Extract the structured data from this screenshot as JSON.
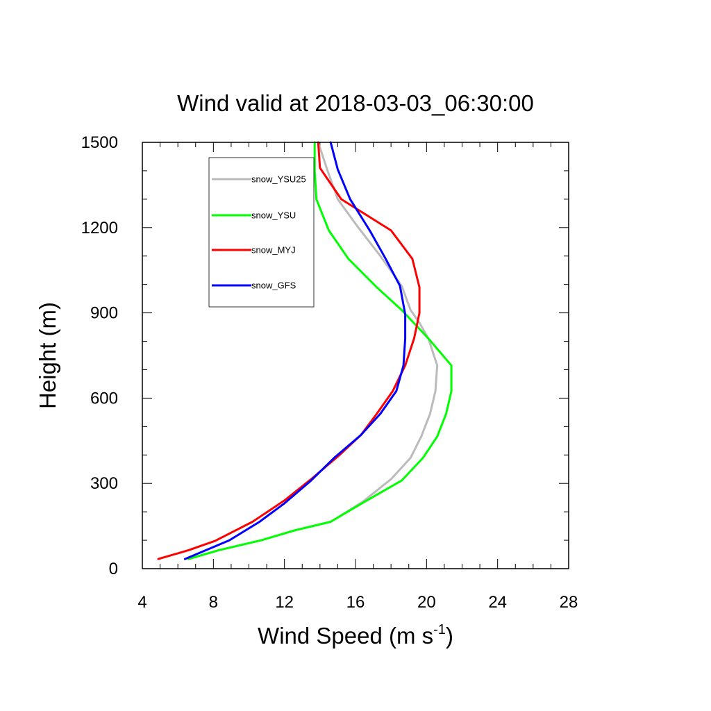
{
  "chart_data": {
    "type": "line",
    "title": "Wind valid at 2018-03-03_06:30:00",
    "xlabel": "Wind Speed (m s",
    "xlabel_superscript": "-1",
    "xlabel_suffix": ")",
    "ylabel": "Height (m)",
    "xlim": [
      4,
      28
    ],
    "ylim": [
      0,
      1500
    ],
    "x_ticks": [
      4,
      8,
      12,
      16,
      20,
      24,
      28
    ],
    "y_ticks": [
      0,
      300,
      600,
      900,
      1200,
      1500
    ],
    "grid": false,
    "legend_position": "top-left",
    "series": [
      {
        "name": "snow_YSU25",
        "color": "#bbbbbb",
        "points": [
          [
            6.6,
            34
          ],
          [
            8.3,
            65
          ],
          [
            10.7,
            100
          ],
          [
            12.6,
            135
          ],
          [
            14.6,
            165
          ],
          [
            16.4,
            235
          ],
          [
            18.0,
            315
          ],
          [
            19.1,
            390
          ],
          [
            19.7,
            465
          ],
          [
            20.2,
            545
          ],
          [
            20.5,
            625
          ],
          [
            20.6,
            715
          ],
          [
            20.1,
            810
          ],
          [
            19.6,
            865
          ],
          [
            19.1,
            910
          ],
          [
            18.6,
            995
          ],
          [
            17.4,
            1100
          ],
          [
            16.1,
            1205
          ],
          [
            15.0,
            1300
          ],
          [
            14.4,
            1405
          ],
          [
            13.9,
            1500
          ]
        ]
      },
      {
        "name": "snow_YSU",
        "color": "#00ff00",
        "points": [
          [
            6.6,
            34
          ],
          [
            8.3,
            65
          ],
          [
            10.7,
            100
          ],
          [
            12.6,
            135
          ],
          [
            14.6,
            165
          ],
          [
            16.5,
            235
          ],
          [
            18.6,
            310
          ],
          [
            19.8,
            390
          ],
          [
            20.6,
            465
          ],
          [
            21.1,
            545
          ],
          [
            21.4,
            625
          ],
          [
            21.4,
            715
          ],
          [
            20.1,
            810
          ],
          [
            18.6,
            910
          ],
          [
            17.2,
            990
          ],
          [
            15.6,
            1090
          ],
          [
            14.5,
            1190
          ],
          [
            13.8,
            1300
          ],
          [
            13.7,
            1400
          ],
          [
            13.7,
            1500
          ]
        ]
      },
      {
        "name": "snow_MYJ",
        "color": "#ff0000",
        "points": [
          [
            4.9,
            34
          ],
          [
            6.6,
            65
          ],
          [
            8.1,
            98
          ],
          [
            10.2,
            165
          ],
          [
            12.0,
            240
          ],
          [
            13.6,
            320
          ],
          [
            15.1,
            400
          ],
          [
            16.3,
            470
          ],
          [
            17.2,
            545
          ],
          [
            18.1,
            625
          ],
          [
            18.8,
            715
          ],
          [
            19.3,
            810
          ],
          [
            19.6,
            900
          ],
          [
            19.6,
            990
          ],
          [
            19.2,
            1090
          ],
          [
            18.0,
            1190
          ],
          [
            15.2,
            1300
          ],
          [
            14.0,
            1410
          ],
          [
            13.9,
            1500
          ]
        ]
      },
      {
        "name": "snow_GFS",
        "color": "#0000ff",
        "points": [
          [
            6.4,
            34
          ],
          [
            8.9,
            100
          ],
          [
            10.6,
            165
          ],
          [
            12.0,
            230
          ],
          [
            13.5,
            310
          ],
          [
            14.8,
            390
          ],
          [
            16.3,
            470
          ],
          [
            17.4,
            545
          ],
          [
            18.3,
            625
          ],
          [
            18.7,
            715
          ],
          [
            18.8,
            810
          ],
          [
            18.8,
            895
          ],
          [
            18.5,
            995
          ],
          [
            17.7,
            1090
          ],
          [
            16.8,
            1190
          ],
          [
            15.7,
            1300
          ],
          [
            15.0,
            1405
          ],
          [
            14.6,
            1500
          ]
        ]
      }
    ]
  }
}
